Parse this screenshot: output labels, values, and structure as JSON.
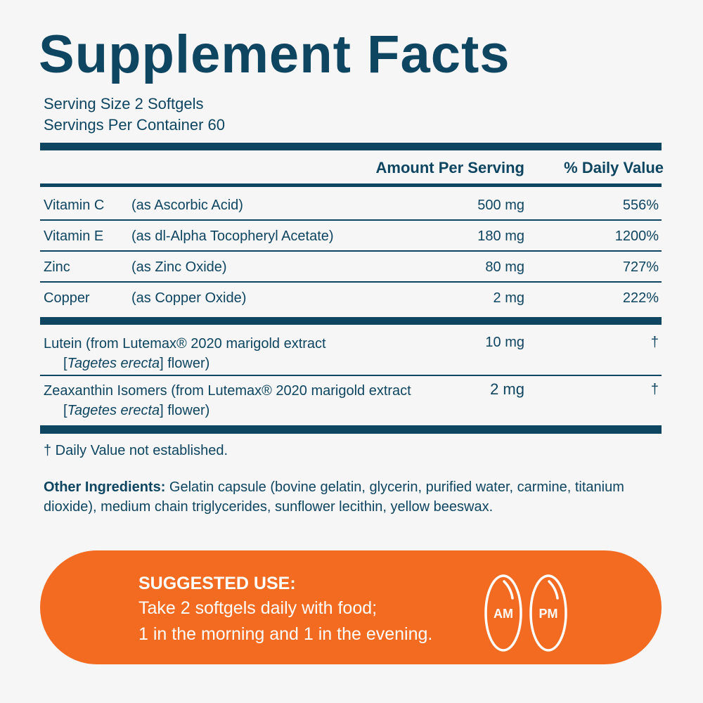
{
  "title": "Supplement Facts",
  "serving_size": "Serving Size 2 Softgels",
  "servings_per_container": "Servings Per Container 60",
  "headers": {
    "amount": "Amount Per Serving",
    "daily_value": "% Daily Value"
  },
  "nutrients": [
    {
      "name": "Vitamin C",
      "source": "(as Ascorbic Acid)",
      "amount": "500 mg",
      "dv": "556%"
    },
    {
      "name": "Vitamin E",
      "source": "(as dl-Alpha Tocopheryl Acetate)",
      "amount": "180 mg",
      "dv": "1200%"
    },
    {
      "name": "Zinc",
      "source": "(as Zinc Oxide)",
      "amount": "80 mg",
      "dv": "727%"
    },
    {
      "name": "Copper",
      "source": "(as Copper Oxide)",
      "amount": "2 mg",
      "dv": "222%"
    }
  ],
  "other_nutrients": [
    {
      "line1": "Lutein (from Lutemax® 2020 marigold extract",
      "species": "Tagetes erecta",
      "line2_suffix": "] flower)",
      "amount": "10 mg",
      "dv": "†"
    },
    {
      "line1": "Zeaxanthin Isomers (from Lutemax® 2020 marigold extract",
      "species": "Tagetes erecta",
      "line2_suffix": "] flower)",
      "amount": "2 mg",
      "dv": "†"
    }
  ],
  "footnote": "† Daily Value not established.",
  "other_ingredients": {
    "label": "Other Ingredients:",
    "text": " Gelatin capsule (bovine gelatin, glycerin, purified water, carmine, titanium dioxide), medium chain triglycerides, sunflower lecithin, yellow beeswax."
  },
  "suggested_use": {
    "heading": "SUGGESTED USE:",
    "line1": "Take 2 softgels daily with food;",
    "line2": "1 in the morning and 1 in the evening.",
    "am": "AM",
    "pm": "PM"
  },
  "colors": {
    "primary": "#0e4560",
    "accent": "#f26b21",
    "background": "#f6f6f6"
  }
}
